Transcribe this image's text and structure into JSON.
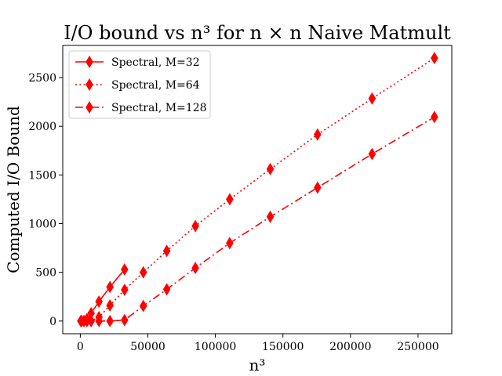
{
  "chart_data": {
    "type": "line",
    "title": "I/O bound vs n³ for n × n Naive Matmult",
    "xlabel": "n³",
    "ylabel": "Computed I/O Bound",
    "xlim": [
      -13000,
      275000
    ],
    "ylim": [
      -130,
      2830
    ],
    "x_ticks": [
      0,
      50000,
      100000,
      150000,
      200000,
      250000
    ],
    "y_ticks": [
      0,
      500,
      1000,
      1500,
      2000,
      2500
    ],
    "grid": false,
    "legend_position": "upper-left",
    "color": "#ff0000",
    "marker": "thin-diamond",
    "series": [
      {
        "name": "Spectral, M=32",
        "linestyle": "solid",
        "x": [
          343,
          1000,
          2744,
          4913,
          8000,
          13824,
          21952,
          32768
        ],
        "y": [
          0,
          0,
          0,
          20,
          80,
          200,
          350,
          530
        ]
      },
      {
        "name": "Spectral, M=64",
        "linestyle": "dotted",
        "x": [
          1000,
          2744,
          4913,
          8000,
          13824,
          21952,
          32768,
          46656,
          64000,
          85184,
          110592,
          140608,
          175616,
          216000,
          262144
        ],
        "y": [
          0,
          0,
          0,
          0,
          40,
          160,
          320,
          500,
          720,
          975,
          1250,
          1560,
          1915,
          2285,
          2700
        ]
      },
      {
        "name": "Spectral, M=128",
        "linestyle": "dashdot",
        "x": [
          1000,
          2744,
          4913,
          8000,
          13824,
          21952,
          32768,
          46656,
          64000,
          85184,
          110592,
          140608,
          175616,
          216000,
          262144
        ],
        "y": [
          0,
          0,
          0,
          0,
          0,
          0,
          10,
          155,
          325,
          545,
          800,
          1070,
          1370,
          1715,
          2095
        ]
      }
    ]
  }
}
